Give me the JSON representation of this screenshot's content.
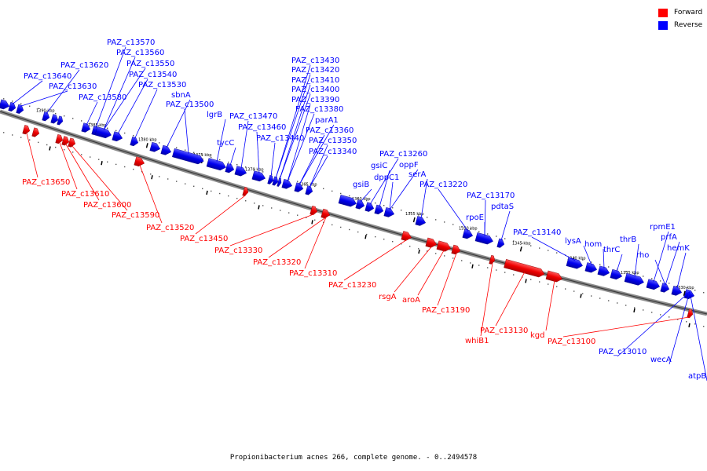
{
  "legend": {
    "forward_label": "Forward",
    "reverse_label": "Reverse",
    "forward_color": "#ff0000",
    "reverse_color": "#0000ff"
  },
  "caption": "Propionibacterium acnes 266, complete genome. - 0..2494578",
  "ticks": [
    "1390 kbp",
    "1385 kbp",
    "1380 kbp",
    "1375 kbp",
    "1370 kbp",
    "1365 kbp",
    "1360 kbp",
    "1355 kbp",
    "1350 kbp",
    "1345 kbp",
    "1340 kbp",
    "1335 kbp",
    "1330 kbp"
  ],
  "reverse_genes": [
    "PAZ_c13640",
    "PAZ_c13630",
    "PAZ_c13620",
    "PAZ_c13580",
    "PAZ_c13570",
    "PAZ_c13560",
    "PAZ_c13550",
    "PAZ_c13540",
    "PAZ_c13530",
    "sbnA",
    "PAZ_c13500",
    "lgrB",
    "tycC",
    "PAZ_c13470",
    "PAZ_c13460",
    "PAZ_c13440",
    "PAZ_c13430",
    "PAZ_c13420",
    "PAZ_c13410",
    "PAZ_c13400",
    "PAZ_c13390",
    "PAZ_c13380",
    "parA1",
    "PAZ_c13360",
    "PAZ_c13350",
    "PAZ_c13340",
    "PAZ_c13260",
    "gsiC",
    "oppF",
    "dppC1",
    "serA",
    "gsiB",
    "PAZ_c13220",
    "PAZ_c13170",
    "pdtaS",
    "rpoE",
    "PAZ_c13140",
    "lysA",
    "hom",
    "thrC",
    "thrB",
    "rpmE1",
    "prfA",
    "rho",
    "hemK",
    "PAZ_c13010",
    "wecA",
    "atpB"
  ],
  "forward_genes": [
    "PAZ_c13650",
    "PAZ_c13610",
    "PAZ_c13600",
    "PAZ_c13590",
    "PAZ_c13520",
    "PAZ_c13450",
    "PAZ_c13330",
    "PAZ_c13320",
    "PAZ_c13310",
    "PAZ_c13230",
    "rsgA",
    "aroA",
    "PAZ_c13190",
    "whiB1",
    "PAZ_c13130",
    "kgd",
    "PAZ_c13100"
  ]
}
